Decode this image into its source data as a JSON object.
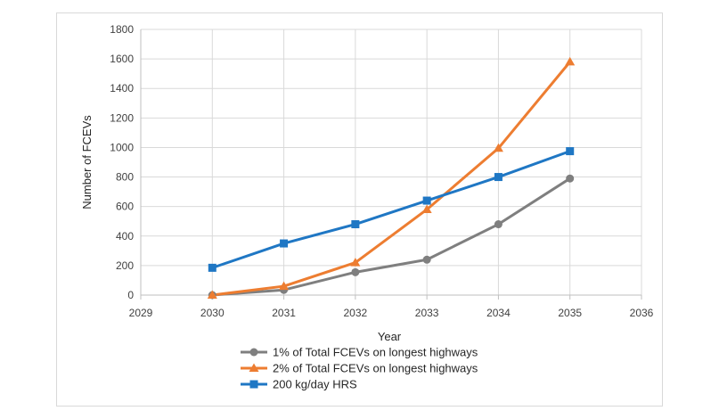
{
  "chart_data": {
    "type": "line",
    "title": "",
    "xlabel": "Year",
    "ylabel": "Number of FCEVs",
    "xlim": [
      2029,
      2036
    ],
    "ylim": [
      0,
      1800
    ],
    "xticks": [
      2029,
      2030,
      2031,
      2032,
      2033,
      2034,
      2035,
      2036
    ],
    "yticks": [
      0,
      200,
      400,
      600,
      800,
      1000,
      1200,
      1400,
      1600,
      1800
    ],
    "grid": true,
    "legend_position": "bottom",
    "x": [
      2030,
      2031,
      2032,
      2033,
      2034,
      2035
    ],
    "series": [
      {
        "name": "1% of Total FCEVs on longest highways",
        "values": [
          0,
          35,
          155,
          240,
          480,
          790
        ],
        "color": "#7f7f7f",
        "marker": "circle"
      },
      {
        "name": "2% of Total FCEVs on longest highways",
        "values": [
          0,
          60,
          220,
          580,
          995,
          1580
        ],
        "color": "#ed7d31",
        "marker": "triangle"
      },
      {
        "name": "200 kg/day HRS",
        "values": [
          185,
          350,
          480,
          640,
          800,
          975
        ],
        "color": "#1f77c4",
        "marker": "square"
      }
    ]
  }
}
